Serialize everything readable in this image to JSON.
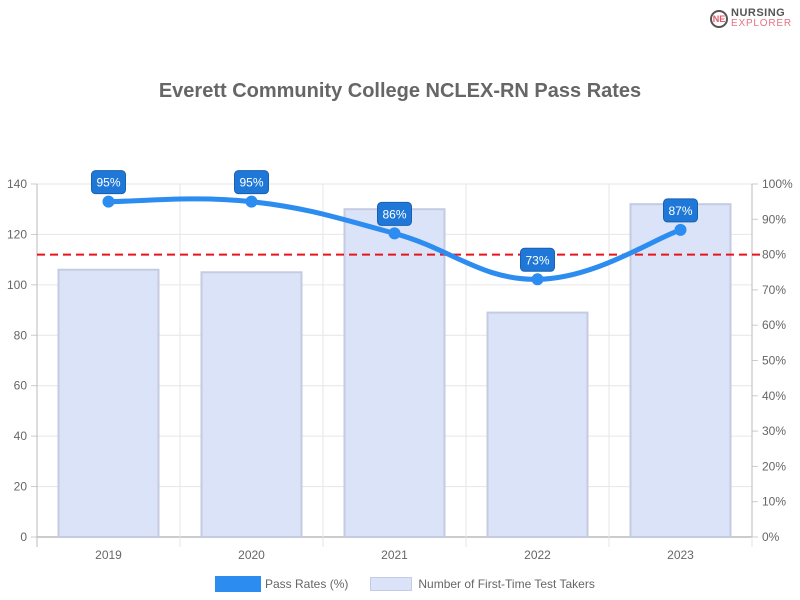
{
  "logo": {
    "line1": "NURSING",
    "line2": "EXPLORER",
    "mark": "NE"
  },
  "chart_data": {
    "type": "bar",
    "title": "Everett Community College NCLEX-RN Pass Rates",
    "categories": [
      "2019",
      "2020",
      "2021",
      "2022",
      "2023"
    ],
    "series": [
      {
        "name": "Pass Rates (%)",
        "type": "line",
        "axis": "right",
        "values": [
          95,
          95,
          86,
          73,
          87
        ],
        "labels": [
          "95%",
          "95%",
          "86%",
          "73%",
          "87%"
        ],
        "color": "#2d8cf0"
      },
      {
        "name": "Number of First-Time Test Takers",
        "type": "bar",
        "axis": "left",
        "values": [
          106,
          105,
          130,
          89,
          132
        ],
        "color": "#dbe3f8"
      }
    ],
    "ylim_left": [
      0,
      140
    ],
    "yticks_left": [
      "0",
      "20",
      "40",
      "60",
      "80",
      "100",
      "120",
      "140"
    ],
    "ylim_right": [
      0,
      100
    ],
    "yticks_right": [
      "0%",
      "10%",
      "20%",
      "30%",
      "40%",
      "50%",
      "60%",
      "70%",
      "80%",
      "90%",
      "100%"
    ],
    "reference_line": {
      "value": 80,
      "axis": "right",
      "color": "#e8141c",
      "style": "dashed"
    },
    "grid": true,
    "legend": "bottom"
  }
}
